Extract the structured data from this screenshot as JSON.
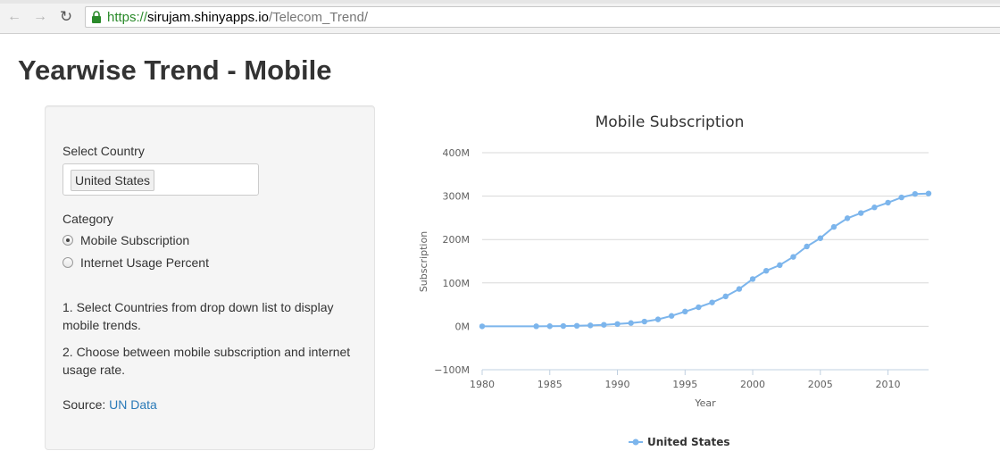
{
  "browser": {
    "url_scheme": "https://",
    "url_host": "sirujam.shinyapps.io",
    "url_path": "/Telecom_Trend/"
  },
  "page": {
    "title": "Yearwise Trend - Mobile"
  },
  "sidebar": {
    "country_label": "Select Country",
    "selected_country": "United States",
    "category_label": "Category",
    "categories": [
      {
        "label": "Mobile Subscription",
        "checked": true
      },
      {
        "label": "Internet Usage Percent",
        "checked": false
      }
    ],
    "help_1": "1. Select Countries from drop down list to display mobile trends.",
    "help_2": "2. Choose between mobile subscription and internet usage rate.",
    "source_prefix": "Source: ",
    "source_link": "UN Data"
  },
  "colors": {
    "series": "#7cb5ec",
    "link": "#2a7ab8",
    "url_green": "#2a8a2a"
  },
  "chart_data": {
    "type": "line",
    "title": "Mobile Subscription",
    "xlabel": "Year",
    "ylabel": "Subscription",
    "xlim": [
      1980,
      2013
    ],
    "ylim": [
      -100,
      400
    ],
    "x_ticks": [
      1980,
      1985,
      1990,
      1995,
      2000,
      2005,
      2010
    ],
    "y_ticks": [
      {
        "value": 400,
        "label": "400M"
      },
      {
        "value": 300,
        "label": "300M"
      },
      {
        "value": 200,
        "label": "200M"
      },
      {
        "value": 100,
        "label": "100M"
      },
      {
        "value": 0,
        "label": "0M"
      },
      {
        "value": -100,
        "label": "−100M"
      }
    ],
    "legend_position": "bottom-center",
    "series": [
      {
        "name": "United States",
        "x": [
          1980,
          1984,
          1985,
          1986,
          1987,
          1988,
          1989,
          1990,
          1991,
          1992,
          1993,
          1994,
          1995,
          1996,
          1997,
          1998,
          1999,
          2000,
          2001,
          2002,
          2003,
          2004,
          2005,
          2006,
          2007,
          2008,
          2009,
          2010,
          2011,
          2012,
          2013
        ],
        "values": [
          0,
          0.1,
          0.3,
          0.7,
          1.2,
          2.1,
          3.5,
          5.3,
          7.6,
          11,
          16,
          24,
          34,
          44,
          55,
          69,
          86,
          109,
          128,
          141,
          160,
          184,
          203,
          229,
          249,
          261,
          274,
          285,
          297,
          305,
          306
        ]
      }
    ]
  }
}
